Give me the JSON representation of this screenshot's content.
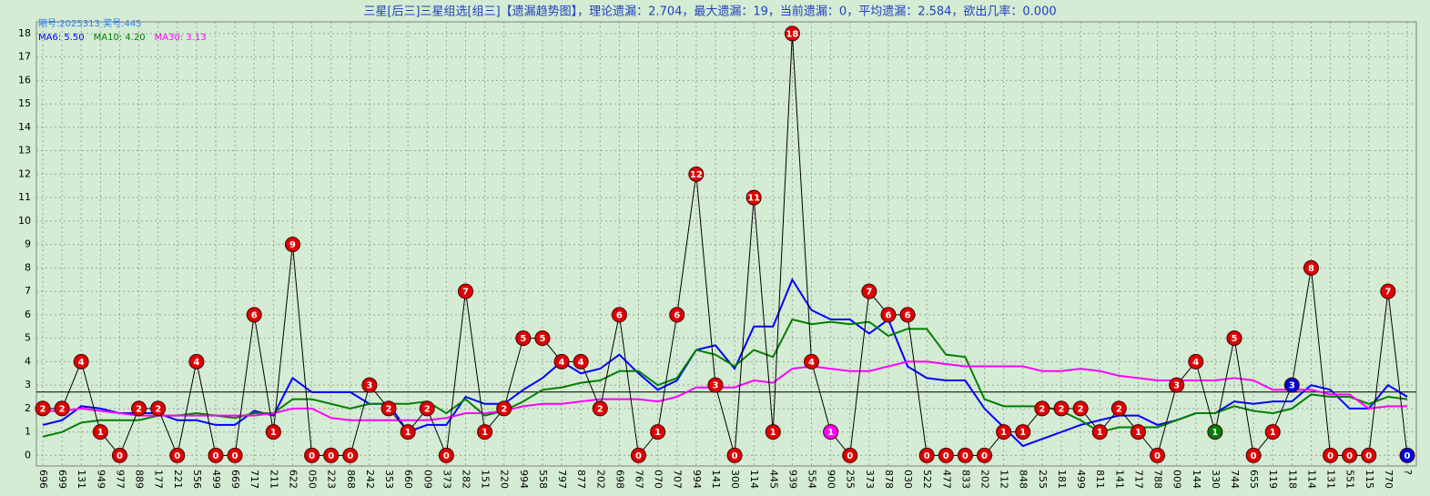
{
  "chart_data": {
    "type": "line",
    "title": "三星[后三]三星组选[组三]【遗漏趋势图】，理论遗漏：2.704，最大遗漏：19，当前遗漏：0，平均遗漏：2.584，欲出几率：0.000",
    "subtitle": "期号:2025313 奖号:445",
    "categories": [
      "696",
      "699",
      "131",
      "949",
      "977",
      "889",
      "177",
      "221",
      "556",
      "499",
      "669",
      "717",
      "211",
      "622",
      "050",
      "223",
      "868",
      "242",
      "353",
      "660",
      "009",
      "373",
      "282",
      "151",
      "220",
      "994",
      "558",
      "797",
      "877",
      "202",
      "698",
      "767",
      "070",
      "707",
      "994",
      "141",
      "300",
      "114",
      "445",
      "939",
      "554",
      "900",
      "255",
      "373",
      "878",
      "030",
      "522",
      "477",
      "833",
      "202",
      "112",
      "848",
      "255",
      "181",
      "499",
      "811",
      "141",
      "717",
      "788",
      "009",
      "144",
      "330",
      "744",
      "655",
      "119",
      "118",
      "114",
      "131",
      "551",
      "115",
      "770",
      "?"
    ],
    "values": [
      2,
      2,
      4,
      1,
      0,
      2,
      2,
      0,
      4,
      0,
      0,
      6,
      1,
      9,
      0,
      0,
      0,
      3,
      2,
      1,
      2,
      0,
      7,
      1,
      2,
      5,
      5,
      4,
      4,
      2,
      6,
      0,
      1,
      6,
      12,
      3,
      0,
      11,
      1,
      18,
      4,
      1,
      0,
      7,
      6,
      6,
      0,
      0,
      0,
      0,
      1,
      1,
      2,
      2,
      2,
      1,
      2,
      1,
      0,
      3,
      4,
      1,
      5,
      0,
      1,
      3,
      8,
      0,
      0,
      0,
      7,
      0
    ],
    "color": "#000000",
    "point_colors": [
      "#e00000",
      "#e00000",
      "#e00000",
      "#e00000",
      "#e00000",
      "#e00000",
      "#e00000",
      "#e00000",
      "#e00000",
      "#e00000",
      "#e00000",
      "#e00000",
      "#e00000",
      "#e00000",
      "#e00000",
      "#e00000",
      "#e00000",
      "#e00000",
      "#e00000",
      "#e00000",
      "#e00000",
      "#e00000",
      "#e00000",
      "#e00000",
      "#e00000",
      "#e00000",
      "#e00000",
      "#e00000",
      "#e00000",
      "#e00000",
      "#e00000",
      "#e00000",
      "#e00000",
      "#e00000",
      "#e00000",
      "#e00000",
      "#e00000",
      "#e00000",
      "#e00000",
      "#e00000",
      "#e00000",
      "#ff00ff",
      "#e00000",
      "#e00000",
      "#e00000",
      "#e00000",
      "#e00000",
      "#e00000",
      "#e00000",
      "#e00000",
      "#e00000",
      "#e00000",
      "#e00000",
      "#e00000",
      "#e00000",
      "#e00000",
      "#e00000",
      "#e00000",
      "#e00000",
      "#e00000",
      "#e00000",
      "#008000",
      "#e00000",
      "#e00000",
      "#e00000",
      "#0000e0",
      "#e00000",
      "#e00000",
      "#e00000",
      "#e00000",
      "#e00000",
      "#0000e0"
    ],
    "series": [
      {
        "name": "MA6: 5.50",
        "color": "#0000ff",
        "values": [
          1.3,
          1.5,
          2.1,
          2.0,
          1.8,
          1.8,
          1.8,
          1.5,
          1.5,
          1.3,
          1.3,
          1.9,
          1.7,
          3.3,
          2.7,
          2.7,
          2.7,
          2.2,
          2.2,
          1.0,
          1.3,
          1.3,
          2.5,
          2.2,
          2.2,
          2.8,
          3.3,
          4.0,
          3.5,
          3.7,
          4.3,
          3.5,
          2.8,
          3.2,
          4.5,
          4.7,
          3.7,
          5.5,
          5.5,
          7.5,
          6.2,
          5.8,
          5.8,
          5.2,
          5.8,
          3.8,
          3.3,
          3.2,
          3.2,
          2.0,
          1.2,
          0.4,
          0.7,
          1.0,
          1.3,
          1.5,
          1.7,
          1.7,
          1.3,
          1.5,
          1.8,
          1.8,
          2.3,
          2.2,
          2.3,
          2.3,
          3.0,
          2.8,
          2.0,
          2.0,
          3.0,
          2.5
        ]
      },
      {
        "name": "MA10: 4.20",
        "color": "#008000",
        "values": [
          0.8,
          1.0,
          1.4,
          1.5,
          1.5,
          1.5,
          1.7,
          1.7,
          1.8,
          1.7,
          1.6,
          1.8,
          1.8,
          2.4,
          2.4,
          2.2,
          2.0,
          2.2,
          2.2,
          2.2,
          2.3,
          1.8,
          2.4,
          1.7,
          1.9,
          2.3,
          2.8,
          2.9,
          3.1,
          3.2,
          3.6,
          3.6,
          3.0,
          3.3,
          4.5,
          4.3,
          3.8,
          4.5,
          4.2,
          5.8,
          5.6,
          5.7,
          5.6,
          5.7,
          5.1,
          5.4,
          5.4,
          4.3,
          4.2,
          2.4,
          2.1,
          2.1,
          2.1,
          1.9,
          1.5,
          1.0,
          1.2,
          1.2,
          1.2,
          1.5,
          1.8,
          1.8,
          2.1,
          1.9,
          1.8,
          2.0,
          2.6,
          2.5,
          2.5,
          2.2,
          2.5,
          2.4
        ]
      },
      {
        "name": "MA30: 3.13",
        "color": "#ff00ff",
        "values": [
          1.9,
          1.9,
          2.0,
          1.9,
          1.8,
          1.7,
          1.7,
          1.7,
          1.7,
          1.7,
          1.7,
          1.7,
          1.8,
          2.0,
          2.0,
          1.6,
          1.5,
          1.5,
          1.5,
          1.5,
          1.5,
          1.6,
          1.8,
          1.8,
          1.9,
          2.1,
          2.2,
          2.2,
          2.3,
          2.4,
          2.4,
          2.4,
          2.3,
          2.5,
          2.9,
          2.9,
          2.9,
          3.2,
          3.1,
          3.7,
          3.8,
          3.7,
          3.6,
          3.6,
          3.8,
          4.0,
          4.0,
          3.9,
          3.8,
          3.8,
          3.8,
          3.8,
          3.6,
          3.6,
          3.7,
          3.6,
          3.4,
          3.3,
          3.2,
          3.2,
          3.2,
          3.2,
          3.3,
          3.2,
          2.8,
          2.8,
          2.8,
          2.6,
          2.6,
          2.0,
          2.1,
          2.1
        ]
      }
    ],
    "reference_line": 2.704,
    "ylim": [
      -0.45,
      18.5
    ],
    "yticks": [
      0,
      1,
      2,
      3,
      4,
      5,
      6,
      7,
      8,
      9,
      10,
      11,
      12,
      13,
      14,
      15,
      16,
      17,
      18
    ],
    "grid": true
  }
}
